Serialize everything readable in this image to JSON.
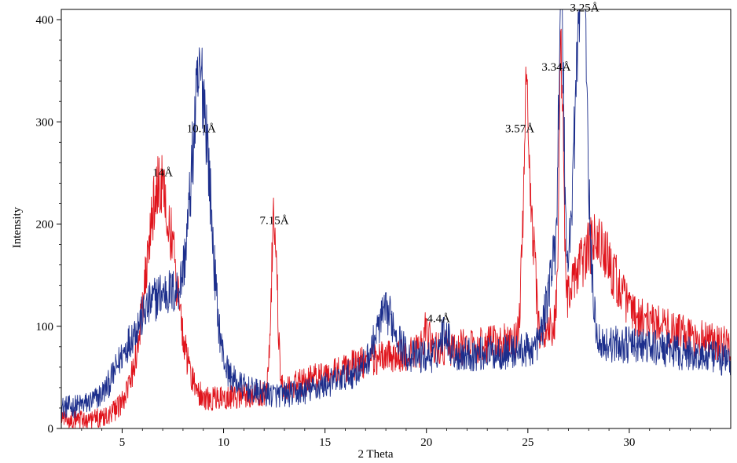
{
  "chart_data": {
    "type": "line",
    "title": "",
    "xlabel": "2 Theta",
    "ylabel": "Intensity",
    "xlim": [
      2,
      35
    ],
    "ylim": [
      0,
      410
    ],
    "x_ticks": [
      5,
      10,
      15,
      20,
      25,
      30
    ],
    "y_ticks": [
      0,
      100,
      200,
      300,
      400
    ],
    "grid": false,
    "legend": "none",
    "series": [
      {
        "color": "#1c2e8c",
        "peaks": [
          {
            "x": 7.2,
            "y": 95,
            "w": 1.6
          },
          {
            "x": 8.9,
            "y": 250,
            "w": 0.45
          },
          {
            "x": 18.0,
            "y": 48,
            "w": 0.5
          },
          {
            "x": 20.9,
            "y": 25,
            "w": 0.2
          },
          {
            "x": 26.4,
            "y": 90,
            "w": 0.4
          },
          {
            "x": 26.65,
            "y": 280,
            "w": 0.12
          },
          {
            "x": 27.6,
            "y": 320,
            "w": 0.32
          },
          {
            "x": 27.8,
            "y": 120,
            "w": 0.1
          }
        ]
      },
      {
        "color": "#e0141c",
        "peaks": [
          {
            "x": 6.9,
            "y": 210,
            "w": 0.72
          },
          {
            "x": 12.5,
            "y": 175,
            "w": 0.14
          },
          {
            "x": 20.0,
            "y": 22,
            "w": 0.15
          },
          {
            "x": 24.95,
            "y": 235,
            "w": 0.17
          },
          {
            "x": 25.3,
            "y": 60,
            "w": 0.12
          },
          {
            "x": 26.65,
            "y": 240,
            "w": 0.11
          },
          {
            "x": 28.3,
            "y": 75,
            "w": 0.9
          }
        ]
      }
    ],
    "annotations": [
      {
        "text": "14Å",
        "x": 7.0,
        "y": 247
      },
      {
        "text": "10.1Å",
        "x": 8.9,
        "y": 290
      },
      {
        "text": "7.15Å",
        "x": 12.5,
        "y": 200
      },
      {
        "text": "4.4Å",
        "x": 20.6,
        "y": 104
      },
      {
        "text": "3.57Å",
        "x": 24.6,
        "y": 290
      },
      {
        "text": "3.34Å",
        "x": 26.4,
        "y": 350
      },
      {
        "text": "3.25Å",
        "x": 27.8,
        "y": 408
      }
    ]
  }
}
